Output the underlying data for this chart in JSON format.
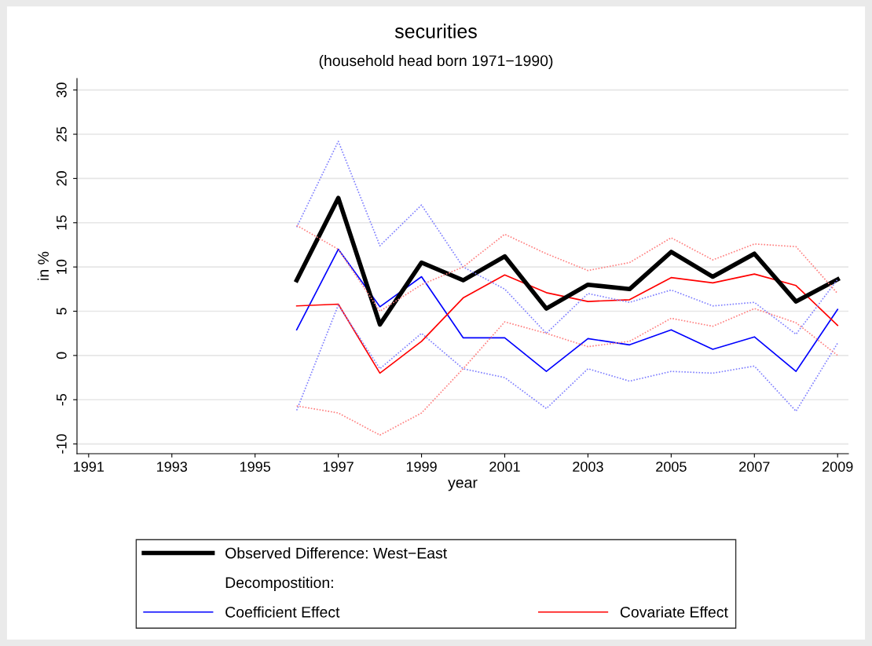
{
  "chart_data": {
    "type": "line",
    "title": "securities",
    "subtitle": "(household head born 1971−1990)",
    "xlabel": "year",
    "ylabel": "in %",
    "x": [
      1996,
      1997,
      1998,
      1999,
      2000,
      2001,
      2002,
      2003,
      2004,
      2005,
      2006,
      2007,
      2008,
      2009
    ],
    "series": [
      {
        "name": "Observed Difference: West−East",
        "color": "#000000",
        "values": [
          8.5,
          17.8,
          3.5,
          10.5,
          8.5,
          11.2,
          5.3,
          8.0,
          7.5,
          11.7,
          8.9,
          11.5,
          6.1,
          8.6
        ]
      },
      {
        "name": "Coefficient Effect",
        "color": "#0000ff",
        "values": [
          2.9,
          12.0,
          5.5,
          8.9,
          2.0,
          2.0,
          -1.8,
          1.9,
          1.2,
          2.9,
          0.7,
          2.1,
          -1.8,
          5.2
        ]
      },
      {
        "color": "#8080ff",
        "line_style": "dotted",
        "values": [
          14.5,
          24.2,
          12.4,
          17.0,
          10.0,
          7.5,
          2.5,
          7.0,
          6.0,
          7.4,
          5.6,
          6.0,
          2.4,
          8.6
        ]
      },
      {
        "color": "#8080ff",
        "line_style": "dotted",
        "values": [
          -6.2,
          5.7,
          -1.5,
          2.5,
          -1.5,
          -2.5,
          -6.0,
          -1.5,
          -2.9,
          -1.8,
          -2.0,
          -1.2,
          -6.3,
          1.4
        ]
      },
      {
        "name": "Covariate Effect",
        "color": "#ff0000",
        "values": [
          5.6,
          5.8,
          -2.0,
          1.6,
          6.5,
          9.1,
          7.1,
          6.1,
          6.3,
          8.8,
          8.2,
          9.2,
          7.9,
          3.4
        ]
      },
      {
        "color": "#ff8080",
        "line_style": "dotted",
        "values": [
          14.7,
          12.0,
          5.0,
          8.0,
          10.0,
          13.7,
          11.5,
          9.6,
          10.5,
          13.3,
          10.8,
          12.6,
          12.3,
          7.0
        ]
      },
      {
        "color": "#ff8080",
        "line_style": "dotted",
        "values": [
          -5.7,
          -6.5,
          -9.0,
          -6.5,
          -1.5,
          3.8,
          2.5,
          1.0,
          1.6,
          4.2,
          3.3,
          5.3,
          3.7,
          0.0
        ]
      }
    ],
    "annotations": [
      "Decompostition:"
    ],
    "xlim": [
      1990.72,
      2009.26
    ],
    "xticks": [
      1991,
      1993,
      1995,
      1997,
      1999,
      2001,
      2003,
      2005,
      2007,
      2009
    ],
    "ylim": [
      -11.1,
      31.3
    ],
    "yticks": [
      -10,
      -5,
      0,
      5,
      10,
      15,
      20,
      25,
      30
    ],
    "grid": "y",
    "legend": "bottom",
    "line_style": "solid",
    "marker": "none"
  }
}
